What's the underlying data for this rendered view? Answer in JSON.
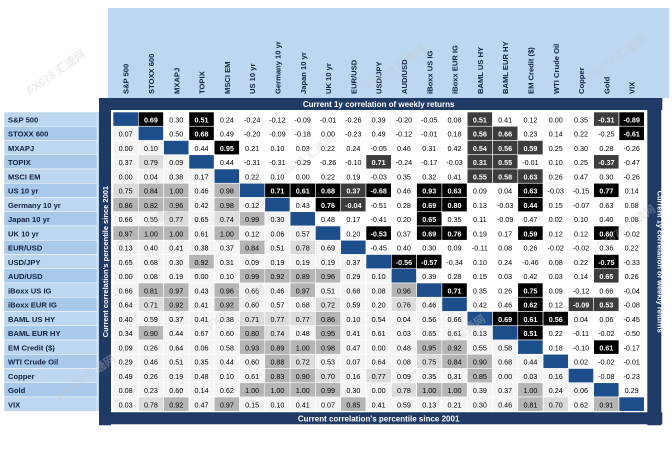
{
  "labels": {
    "top_banner": "Current 1y correlation of weekly returns",
    "bottom_banner": "Current correlation's percentile since 2001",
    "left_side": "Current correlation's percentile since 2001",
    "right_side": "Current 1y correlation of weekly returns",
    "watermark": "FX678 汇通网"
  },
  "colors": {
    "header_blue": "#4f8fd0",
    "light_blue": "#bcd7ef",
    "navy": "#203a66",
    "diag_blue": "#1d4e8c",
    "highlight_black": "#000000",
    "grey_mid": "#b5b5b5",
    "grey_light": "#dcdcdc"
  },
  "chart_data": {
    "type": "heatmap",
    "title": "",
    "assets": [
      "S&P 500",
      "STOXX 600",
      "MXAPJ",
      "TOPIX",
      "MSCI EM",
      "US 10 yr",
      "Germany 10 yr",
      "Japan 10 yr",
      "UK 10 yr",
      "EUR/USD",
      "USD/JPY",
      "AUD/USD",
      "iBoxx US IG",
      "iBoxx EUR IG",
      "BAML US HY",
      "BAML EUR HY",
      "EM Credit ($)",
      "WTI Crude Oil",
      "Copper",
      "Gold",
      "VIX"
    ],
    "values": [
      [
        "",
        "0.69",
        "0.30",
        "0.51",
        "0.24",
        "-0.24",
        "-0.12",
        "-0.09",
        "-0.01",
        "-0.26",
        "0.39",
        "-0.20",
        "-0.05",
        "0.08",
        "0.51",
        "0.41",
        "0.12",
        "0.00",
        "0.35",
        "-0.31",
        "-0.89"
      ],
      [
        "0.07",
        "",
        "0.50",
        "0.68",
        "0.49",
        "-0.20",
        "-0.09",
        "-0.18",
        "0.00",
        "-0.23",
        "0.49",
        "-0.12",
        "-0.01",
        "0.18",
        "0.56",
        "0.66",
        "0.23",
        "0.14",
        "0.22",
        "-0.25",
        "-0.61"
      ],
      [
        "0.00",
        "0.10",
        "",
        "0.44",
        "0.95",
        "0.21",
        "0.10",
        "0.03",
        "0.22",
        "0.24",
        "-0.05",
        "0.46",
        "0.31",
        "0.42",
        "0.54",
        "0.56",
        "0.59",
        "0.25",
        "0.30",
        "0.28",
        "-0.26"
      ],
      [
        "0.37",
        "0.79",
        "0.09",
        "",
        "0.44",
        "-0.31",
        "-0.31",
        "-0.29",
        "-0.26",
        "-0.10",
        "0.71",
        "-0.24",
        "-0.17",
        "-0.03",
        "0.31",
        "0.55",
        "-0.01",
        "0.10",
        "0.25",
        "-0.37",
        "-0.47"
      ],
      [
        "0.00",
        "0.04",
        "0.38",
        "0.17",
        "",
        "0.22",
        "0.10",
        "0.00",
        "0.22",
        "0.19",
        "-0.03",
        "0.35",
        "0.32",
        "0.41",
        "0.55",
        "0.58",
        "0.63",
        "0.26",
        "0.47",
        "0.30",
        "-0.26"
      ],
      [
        "0.75",
        "0.84",
        "1.00",
        "0.46",
        "0.98",
        "",
        "0.71",
        "0.61",
        "0.68",
        "0.37",
        "-0.68",
        "0.46",
        "0.93",
        "0.63",
        "0.09",
        "0.04",
        "0.63",
        "-0.03",
        "-0.15",
        "0.77",
        "0.14"
      ],
      [
        "0.86",
        "0.82",
        "0.96",
        "0.42",
        "0.98",
        "0.12",
        "",
        "0.43",
        "0.76",
        "-0.04",
        "-0.51",
        "0.28",
        "0.69",
        "0.80",
        "0.13",
        "-0.03",
        "0.44",
        "0.15",
        "-0.07",
        "0.63",
        "0.08"
      ],
      [
        "0.66",
        "0.55",
        "0.77",
        "0.65",
        "0.74",
        "0.99",
        "0.30",
        "",
        "0.48",
        "0.17",
        "-0.41",
        "0.20",
        "0.65",
        "0.35",
        "0.11",
        "-0.09",
        "0.47",
        "0.02",
        "0.10",
        "0.40",
        "0.08"
      ],
      [
        "0.97",
        "1.00",
        "1.00",
        "0.61",
        "1.00",
        "0.12",
        "0.06",
        "0.57",
        "",
        "0.20",
        "-0.53",
        "0.37",
        "0.69",
        "0.76",
        "0.19",
        "0.17",
        "0.59",
        "0.12",
        "0.12",
        "0.60",
        "-0.02"
      ],
      [
        "0.13",
        "0.40",
        "0.41",
        "0.38",
        "0.37",
        "0.84",
        "0.51",
        "0.78",
        "0.69",
        "",
        "-0.45",
        "0.40",
        "0.30",
        "0.09",
        "-0.11",
        "0.08",
        "0.26",
        "-0.02",
        "-0.02",
        "0.36",
        "0.22"
      ],
      [
        "0.65",
        "0.68",
        "0.30",
        "0.92",
        "0.31",
        "0.09",
        "0.19",
        "0.19",
        "0.19",
        "0.37",
        "",
        "-0.56",
        "-0.57",
        "-0.34",
        "0.10",
        "0.24",
        "-0.46",
        "0.08",
        "0.22",
        "-0.75",
        "-0.33"
      ],
      [
        "0.00",
        "0.08",
        "0.19",
        "0.00",
        "0.10",
        "0.99",
        "0.92",
        "0.89",
        "0.96",
        "0.29",
        "0.10",
        "",
        "0.39",
        "0.28",
        "0.15",
        "0.03",
        "0.42",
        "0.03",
        "0.14",
        "0.65",
        "0.26"
      ],
      [
        "0.66",
        "0.81",
        "0.97",
        "0.43",
        "0.96",
        "0.66",
        "0.46",
        "0.97",
        "0.51",
        "0.68",
        "0.08",
        "0.96",
        "",
        "0.71",
        "0.35",
        "0.26",
        "0.75",
        "0.09",
        "-0.12",
        "0.66",
        "-0.04"
      ],
      [
        "0.64",
        "0.71",
        "0.92",
        "0.41",
        "0.92",
        "0.60",
        "0.57",
        "0.68",
        "0.72",
        "0.59",
        "0.20",
        "0.76",
        "0.46",
        "",
        "0.42",
        "0.46",
        "0.62",
        "0.12",
        "-0.09",
        "0.53",
        "-0.08"
      ],
      [
        "0.40",
        "0.59",
        "0.37",
        "0.41",
        "0.38",
        "0.71",
        "0.77",
        "0.77",
        "0.86",
        "0.10",
        "0.54",
        "0.04",
        "0.56",
        "0.66",
        "",
        "0.69",
        "0.61",
        "0.56",
        "0.04",
        "0.06",
        "-0.45"
      ],
      [
        "0.34",
        "0.90",
        "0.44",
        "0.67",
        "0.60",
        "0.80",
        "0.74",
        "0.48",
        "0.95",
        "0.41",
        "0.61",
        "0.03",
        "0.65",
        "0.61",
        "0.13",
        "",
        "0.51",
        "0.22",
        "-0.11",
        "-0.02",
        "-0.50"
      ],
      [
        "0.09",
        "0.26",
        "0.64",
        "0.06",
        "0.58",
        "0.93",
        "0.89",
        "1.00",
        "0.98",
        "0.47",
        "0.00",
        "0.48",
        "0.95",
        "0.92",
        "0.55",
        "0.58",
        "",
        "0.18",
        "-0.10",
        "0.61",
        "-0.17"
      ],
      [
        "0.29",
        "0.46",
        "0.51",
        "0.35",
        "0.44",
        "0.60",
        "0.88",
        "0.72",
        "0.53",
        "0.07",
        "0.64",
        "0.08",
        "0.75",
        "0.84",
        "0.90",
        "0.68",
        "0.44",
        "",
        "0.02",
        "-0.02",
        "-0.01"
      ],
      [
        "0.49",
        "0.26",
        "0.19",
        "0.48",
        "0.10",
        "0.61",
        "0.83",
        "0.90",
        "0.70",
        "0.16",
        "0.77",
        "0.09",
        "0.35",
        "0.31",
        "0.85",
        "0.00",
        "0.03",
        "0.16",
        "",
        "-0.08",
        "-0.23"
      ],
      [
        "0.08",
        "0.23",
        "0.60",
        "0.14",
        "0.62",
        "1.00",
        "1.00",
        "1.00",
        "0.99",
        "0.30",
        "0.00",
        "0.78",
        "1.00",
        "1.00",
        "0.39",
        "0.37",
        "1.00",
        "0.24",
        "0.06",
        "",
        "0.29"
      ],
      [
        "0.03",
        "0.78",
        "0.92",
        "0.47",
        "0.97",
        "0.15",
        "0.10",
        "0.41",
        "0.07",
        "0.85",
        "0.41",
        "0.59",
        "0.13",
        "0.21",
        "0.30",
        "0.46",
        "0.81",
        "0.70",
        "0.62",
        "0.91",
        ""
      ]
    ],
    "shading": {
      "upper_black_cells": [
        [
          0,
          1
        ],
        [
          0,
          3
        ],
        [
          1,
          3
        ],
        [
          2,
          4
        ],
        [
          5,
          6
        ],
        [
          5,
          7
        ],
        [
          5,
          8
        ],
        [
          5,
          10
        ],
        [
          5,
          12
        ],
        [
          5,
          13
        ],
        [
          5,
          16
        ],
        [
          5,
          19
        ],
        [
          6,
          8
        ],
        [
          6,
          12
        ],
        [
          6,
          13
        ],
        [
          6,
          16
        ],
        [
          7,
          12
        ],
        [
          8,
          10
        ],
        [
          8,
          12
        ],
        [
          8,
          13
        ],
        [
          8,
          16
        ],
        [
          8,
          19
        ],
        [
          10,
          11
        ],
        [
          10,
          12
        ],
        [
          10,
          19
        ],
        [
          12,
          13
        ],
        [
          12,
          16
        ],
        [
          13,
          16
        ],
        [
          14,
          15
        ],
        [
          14,
          16
        ],
        [
          14,
          17
        ],
        [
          15,
          16
        ],
        [
          16,
          19
        ],
        [
          0,
          20
        ],
        [
          1,
          20
        ]
      ],
      "upper_dark_cells": [
        [
          0,
          14
        ],
        [
          1,
          14
        ],
        [
          1,
          15
        ],
        [
          2,
          14
        ],
        [
          2,
          15
        ],
        [
          2,
          16
        ],
        [
          3,
          10
        ],
        [
          3,
          14
        ],
        [
          3,
          15
        ],
        [
          4,
          14
        ],
        [
          4,
          15
        ],
        [
          4,
          16
        ],
        [
          0,
          19
        ],
        [
          3,
          19
        ],
        [
          11,
          19
        ],
        [
          13,
          19
        ],
        [
          5,
          9
        ],
        [
          6,
          9
        ],
        [
          13,
          18
        ]
      ],
      "upper_mid_grey_cells": [
        [
          5,
          9
        ],
        [
          11,
          12
        ],
        [
          11,
          16
        ],
        [
          11,
          19
        ],
        [
          12,
          15
        ],
        [
          12,
          14
        ],
        [
          13,
          14
        ],
        [
          13,
          15
        ],
        [
          14,
          18
        ],
        [
          15,
          17
        ],
        [
          15,
          18
        ],
        [
          16,
          17
        ]
      ],
      "lower_grey_threshold": 0.8,
      "lower_light_threshold": 0.7
    }
  }
}
